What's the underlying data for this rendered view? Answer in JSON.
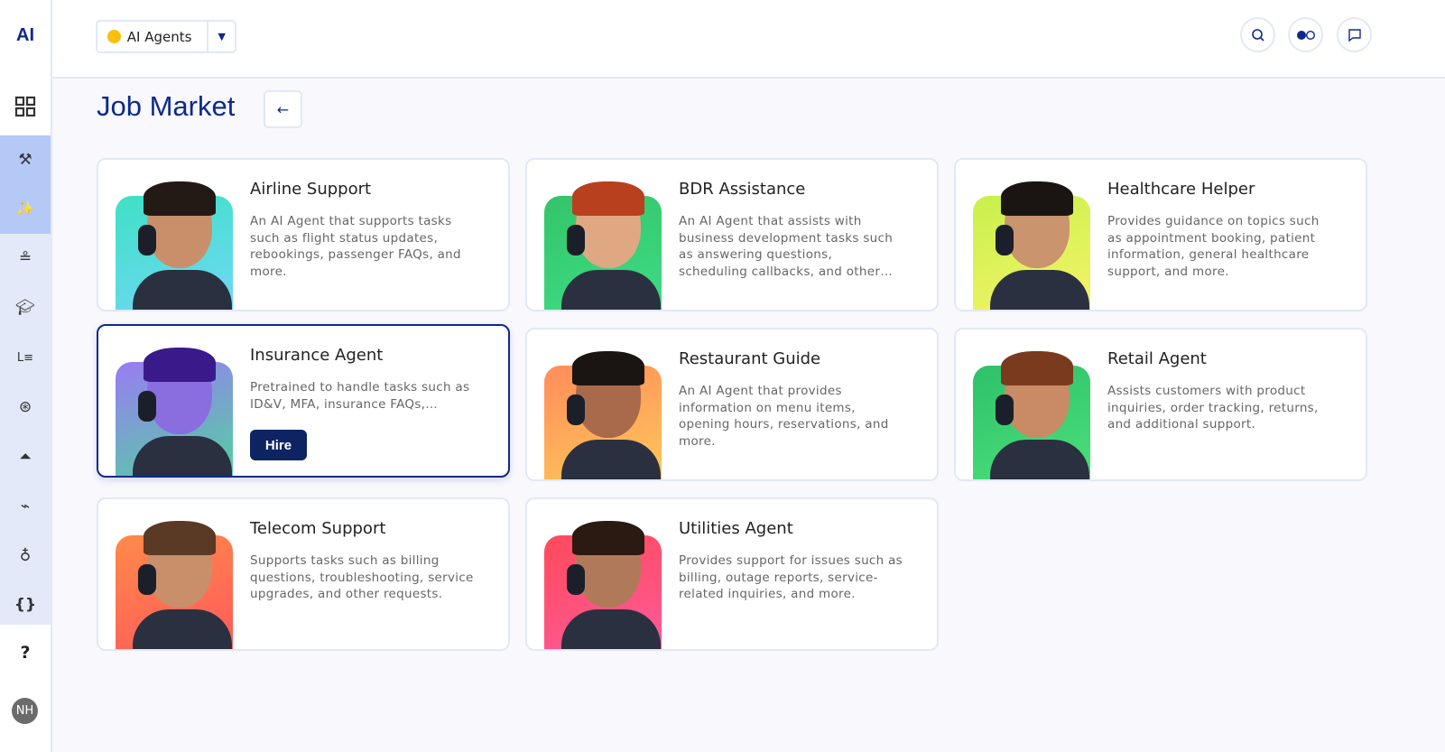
{
  "app": {
    "logo": "AI"
  },
  "topbar": {
    "selector_label": "AI Agents",
    "selector_dot_color": "#fbbf0c",
    "buttons": [
      "search-icon",
      "toggle-icon",
      "chat-icon"
    ]
  },
  "sidebar": {
    "items": [
      "dashboard",
      "tools",
      "ai-agents",
      "hierarchy",
      "training",
      "list",
      "brain",
      "lab",
      "integrations",
      "ideas",
      "code"
    ],
    "help": "?",
    "avatar": "NH"
  },
  "page": {
    "title": "Job Market",
    "back": "←"
  },
  "cards": [
    {
      "title": "Airline Support",
      "desc": "An AI Agent that supports tasks such as flight status updates, rebookings, passenger FAQs, and more.",
      "gradient": [
        "#3fe0c5",
        "#6fd8f5"
      ]
    },
    {
      "title": "BDR Assistance",
      "desc": "An AI Agent that assists with business development tasks such as answering questions, scheduling callbacks, and other…",
      "gradient": [
        "#34c46a",
        "#3ddc84"
      ]
    },
    {
      "title": "Healthcare Helper",
      "desc": "Provides guidance on topics such as appointment booking, patient information, general healthcare support, and more.",
      "gradient": [
        "#c8f04a",
        "#f4f36a"
      ]
    },
    {
      "title": "Insurance Agent",
      "desc": "Pretrained to handle tasks such as ID&V, MFA, insurance FAQs,…",
      "gradient": [
        "#9a7bf4",
        "#52d1a0"
      ],
      "selected": true,
      "hire_label": "Hire"
    },
    {
      "title": "Restaurant Guide",
      "desc": "An AI Agent that provides information on menu items, opening hours, reservations, and more.",
      "gradient": [
        "#ff8c5a",
        "#ffc85a"
      ]
    },
    {
      "title": "Retail Agent",
      "desc": "Assists customers with product inquiries, order tracking, returns, and additional support.",
      "gradient": [
        "#2fc06a",
        "#4be07a"
      ]
    },
    {
      "title": "Telecom Support",
      "desc": "Supports tasks such as billing questions, troubleshooting, service upgrades, and other requests.",
      "gradient": [
        "#ff8a4a",
        "#ff5a5a"
      ]
    },
    {
      "title": "Utilities Agent",
      "desc": "Provides support for issues such as billing, outage reports, service-related inquiries, and more.",
      "gradient": [
        "#ff4a5a",
        "#ff5a9a"
      ]
    }
  ]
}
